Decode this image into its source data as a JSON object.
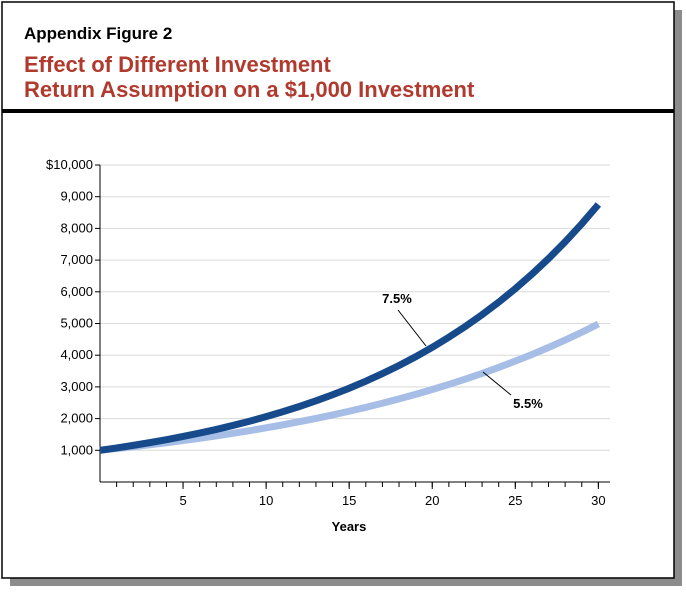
{
  "chart_data": {
    "type": "line",
    "figure_label": "Appendix Figure 2",
    "title": [
      "Effect of Different Investment",
      "Return Assumption on a $1,000 Investment"
    ],
    "x_label": "Years",
    "x": [
      0,
      1,
      2,
      3,
      4,
      5,
      6,
      7,
      8,
      9,
      10,
      11,
      12,
      13,
      14,
      15,
      16,
      17,
      18,
      19,
      20,
      21,
      22,
      23,
      24,
      25,
      26,
      27,
      28,
      29,
      30
    ],
    "series": [
      {
        "name": "7.5%",
        "color": "#174a8b",
        "values": [
          1000,
          1075,
          1156,
          1242,
          1335,
          1436,
          1543,
          1659,
          1784,
          1917,
          2061,
          2216,
          2382,
          2560,
          2752,
          2959,
          3181,
          3419,
          3676,
          3951,
          4248,
          4567,
          4909,
          5277,
          5673,
          6098,
          6556,
          7048,
          7576,
          8144,
          8755
        ]
      },
      {
        "name": "5.5%",
        "color": "#a6bde6",
        "values": [
          1000,
          1055,
          1113,
          1174,
          1239,
          1307,
          1379,
          1455,
          1535,
          1619,
          1708,
          1802,
          1901,
          2006,
          2116,
          2232,
          2355,
          2485,
          2621,
          2766,
          2918,
          3078,
          3248,
          3426,
          3615,
          3813,
          4023,
          4244,
          4478,
          4724,
          4984
        ]
      }
    ],
    "xlim": [
      0,
      30.7
    ],
    "ylim": [
      0,
      10000
    ],
    "xticks": [
      5,
      10,
      15,
      20,
      25,
      30
    ],
    "x_minor_ticks": [
      1,
      2,
      3,
      4,
      5,
      6,
      7,
      8,
      9,
      10,
      11,
      12,
      13,
      14,
      15,
      16,
      17,
      18,
      19,
      20,
      21,
      22,
      23,
      24,
      25,
      26,
      27,
      28,
      29,
      30
    ],
    "yticks": [
      {
        "value": 1000,
        "label": "1,000"
      },
      {
        "value": 2000,
        "label": "2,000"
      },
      {
        "value": 3000,
        "label": "3,000"
      },
      {
        "value": 4000,
        "label": "4,000"
      },
      {
        "value": 5000,
        "label": "5,000"
      },
      {
        "value": 6000,
        "label": "6,000"
      },
      {
        "value": 7000,
        "label": "7,000"
      },
      {
        "value": 8000,
        "label": "8,000"
      },
      {
        "value": 9000,
        "label": "9,000"
      },
      {
        "value": 10000,
        "label": "$10,000"
      }
    ],
    "grid": true
  }
}
